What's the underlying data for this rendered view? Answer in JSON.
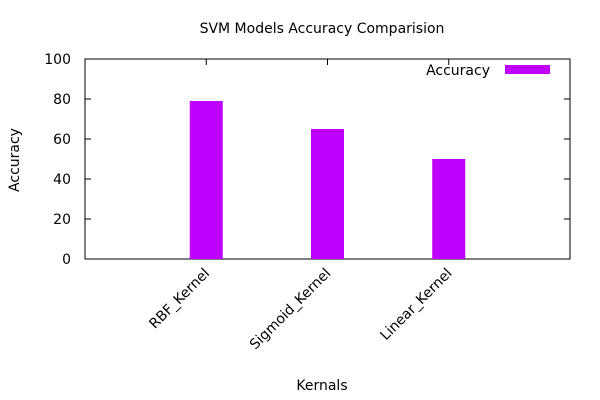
{
  "chart_data": {
    "type": "bar",
    "title": "SVM Models Accuracy Comparision",
    "xlabel": "Kernals",
    "ylabel": "Accuracy",
    "categories": [
      "RBF_Kernel",
      "Sigmoid_Kernel",
      "Linear_Kernel"
    ],
    "series": [
      {
        "name": "Accuracy",
        "values": [
          79,
          65,
          50
        ],
        "color": "#c000ff"
      }
    ],
    "ylim": [
      0,
      100
    ],
    "yticks": [
      0,
      20,
      40,
      60,
      80,
      100
    ],
    "grid": false,
    "legend_position": "top-right"
  }
}
